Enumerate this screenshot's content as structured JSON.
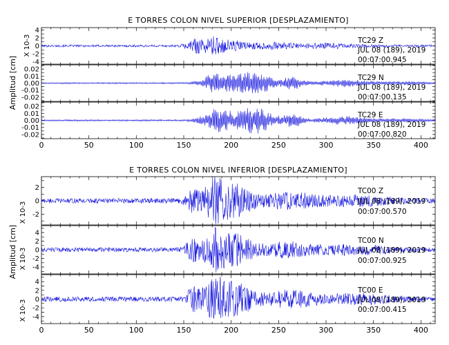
{
  "chart_data": [
    {
      "type": "line",
      "title": "E TORRES COLON NIVEL SUPERIOR [DESPLAZAMIENTO]",
      "ylabel": "Amplitud [cm]",
      "xlim": [
        0,
        415
      ],
      "xticks": [
        "0",
        "50",
        "100",
        "150",
        "200",
        "250",
        "300",
        "350",
        "400"
      ],
      "traces": [
        {
          "scale_label": "X 10-3",
          "ylim": [
            -4.6,
            4.6
          ],
          "yticks": [
            "4",
            "2",
            "0",
            "-2",
            "-4"
          ],
          "ytick_values": [
            4,
            2,
            0,
            -2,
            -4
          ],
          "station": "TC29   Z",
          "date": "JUL 08 (189), 2019",
          "time": "00:07:00.945",
          "amp": 2.0,
          "shape": "z"
        },
        {
          "scale_label": "",
          "ylim": [
            -0.026,
            0.026
          ],
          "yticks": [
            "0.02",
            "0.01",
            "0.00",
            "-0.01",
            "-0.02"
          ],
          "ytick_values": [
            0.02,
            0.01,
            0.0,
            -0.01,
            -0.02
          ],
          "station": "TC29   N",
          "date": "JUL 08 (189), 2019",
          "time": "00:07:00.135",
          "amp": 0.017,
          "shape": "h"
        },
        {
          "scale_label": "",
          "ylim": [
            -0.026,
            0.026
          ],
          "yticks": [
            "0.02",
            "0.01",
            "0.00",
            "-0.01",
            "-0.02"
          ],
          "ytick_values": [
            0.02,
            0.01,
            0.0,
            -0.01,
            -0.02
          ],
          "station": "TC29   E",
          "date": "JUL 08 (189), 2019",
          "time": "00:07:00.820",
          "amp": 0.019,
          "shape": "h"
        }
      ]
    },
    {
      "type": "line",
      "title": "E TORRES COLON NIVEL INFERIOR [DESPLAZAMIENTO]",
      "ylabel": "Amplitud [cm]",
      "xlim": [
        0,
        415
      ],
      "xticks": [
        "0",
        "50",
        "100",
        "150",
        "200",
        "250",
        "300",
        "350",
        "400"
      ],
      "traces": [
        {
          "scale_label": "X 10-3",
          "ylim": [
            -3.6,
            3.6
          ],
          "yticks": [
            "2",
            "0",
            "-2"
          ],
          "ytick_values": [
            2,
            0,
            -2
          ],
          "station": "TC00   Z",
          "date": "JUL 08 (189), 2019",
          "time": "00:07:00.570",
          "amp": 3.0,
          "shape": "zl"
        },
        {
          "scale_label": "X 10-3",
          "ylim": [
            -5.6,
            5.6
          ],
          "yticks": [
            "4",
            "2",
            "0",
            "-2",
            "-4"
          ],
          "ytick_values": [
            4,
            2,
            0,
            -2,
            -4
          ],
          "station": "TC00   N",
          "date": "JUL 08 (189), 2019",
          "time": "00:07:00.925",
          "amp": 4.3,
          "shape": "zl"
        },
        {
          "scale_label": "X 10-3",
          "ylim": [
            -5.6,
            5.6
          ],
          "yticks": [
            "4",
            "2",
            "0",
            "-2",
            "-4"
          ],
          "ytick_values": [
            4,
            2,
            0,
            -2,
            -4
          ],
          "station": "TC00   E",
          "date": "JUL 08 (189), 2019",
          "time": "00:07:00.415",
          "amp": 4.6,
          "shape": "zl"
        }
      ]
    }
  ]
}
